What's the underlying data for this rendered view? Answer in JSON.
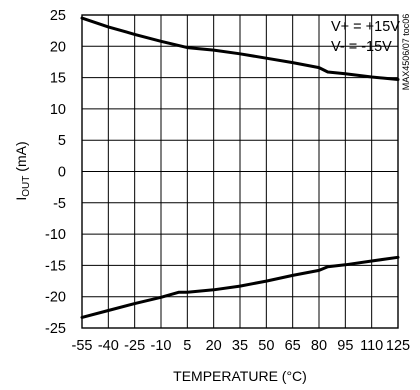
{
  "chart_data": {
    "type": "line",
    "title": "",
    "xlabel": "TEMPERATURE (°C)",
    "ylabel_main": "I",
    "ylabel_sub": "OUT",
    "ylabel_unit": " (mA)",
    "xlim": [
      -55,
      125
    ],
    "ylim": [
      -25,
      25
    ],
    "x_ticks": [
      -55,
      -40,
      -25,
      -10,
      5,
      20,
      35,
      50,
      65,
      80,
      95,
      110,
      125
    ],
    "y_ticks": [
      25,
      20,
      15,
      10,
      5,
      0,
      -5,
      -10,
      -15,
      -20,
      -25
    ],
    "grid": true,
    "annotations": [
      "V+ = +15V",
      "V- = -15V"
    ],
    "figure_code": "MAX4506/07 toc06",
    "series": [
      {
        "x": [
          -55,
          -40,
          -25,
          -10,
          5,
          20,
          35,
          50,
          65,
          80,
          85,
          95,
          110,
          125
        ],
        "y": [
          24.5,
          23.1,
          21.9,
          20.8,
          19.8,
          19.4,
          18.8,
          18.1,
          17.4,
          16.6,
          15.9,
          15.6,
          15.1,
          14.7
        ]
      },
      {
        "x": [
          -55,
          -40,
          -25,
          -10,
          0,
          5,
          20,
          35,
          50,
          65,
          80,
          85,
          95,
          110,
          125
        ],
        "y": [
          -23.3,
          -22.2,
          -21.1,
          -20.1,
          -19.3,
          -19.3,
          -18.9,
          -18.3,
          -17.5,
          -16.6,
          -15.8,
          -15.2,
          -14.9,
          -14.3,
          -13.7
        ]
      }
    ]
  }
}
